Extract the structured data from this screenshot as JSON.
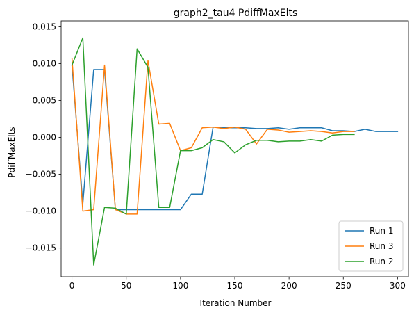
{
  "chart_data": {
    "type": "line",
    "title": "graph2_tau4 PdiffMaxElts",
    "xlabel": "Iteration Number",
    "ylabel": "PdiffMaxElts",
    "xlim": [
      -10,
      310
    ],
    "ylim": [
      -0.0189,
      0.0158
    ],
    "xticks": [
      0,
      50,
      100,
      150,
      200,
      250,
      300
    ],
    "xtick_labels": [
      "0",
      "50",
      "100",
      "150",
      "200",
      "250",
      "300"
    ],
    "yticks": [
      -0.015,
      -0.01,
      -0.005,
      0.0,
      0.005,
      0.01,
      0.015
    ],
    "ytick_labels": [
      "−0.015",
      "−0.010",
      "−0.005",
      "0.000",
      "0.005",
      "0.010",
      "0.015"
    ],
    "grid": false,
    "legend_position": "lower-right",
    "series": [
      {
        "name": "Run 1",
        "color": "#1f77b4",
        "x": [
          0,
          10,
          20,
          30,
          40,
          50,
          60,
          70,
          80,
          90,
          100,
          110,
          120,
          130,
          140,
          150,
          160,
          170,
          180,
          190,
          200,
          210,
          220,
          230,
          240,
          250,
          260,
          270,
          280,
          290,
          300
        ],
        "y": [
          0.0098,
          -0.009,
          0.0092,
          0.0092,
          -0.0098,
          -0.0098,
          -0.0098,
          -0.0098,
          -0.0098,
          -0.0098,
          -0.0098,
          -0.0077,
          -0.0077,
          0.0014,
          0.0013,
          0.0013,
          0.0013,
          0.0012,
          0.0012,
          0.0013,
          0.0011,
          0.0013,
          0.0013,
          0.0013,
          0.0009,
          0.0009,
          0.0008,
          0.0011,
          0.0008,
          0.0008,
          0.0008
        ]
      },
      {
        "name": "Run 3",
        "color": "#ff7f0e",
        "x": [
          0,
          10,
          20,
          30,
          40,
          50,
          60,
          70,
          80,
          90,
          100,
          110,
          120,
          130,
          140,
          150,
          160,
          170,
          180,
          190,
          200,
          210,
          220,
          230,
          240,
          250,
          260
        ],
        "y": [
          0.0107,
          -0.01,
          -0.0098,
          0.0098,
          -0.0098,
          -0.0104,
          -0.0104,
          0.0104,
          0.0018,
          0.0019,
          -0.0018,
          -0.0014,
          0.0013,
          0.0014,
          0.0012,
          0.0014,
          0.0011,
          -0.0009,
          0.0011,
          0.001,
          0.0007,
          0.0008,
          0.0009,
          0.0008,
          0.0006,
          0.0008,
          0.0008
        ]
      },
      {
        "name": "Run 2",
        "color": "#2ca02c",
        "x": [
          0,
          10,
          20,
          30,
          40,
          50,
          60,
          70,
          80,
          90,
          100,
          110,
          120,
          130,
          140,
          150,
          160,
          170,
          180,
          190,
          200,
          210,
          220,
          230,
          240,
          250,
          260
        ],
        "y": [
          0.0098,
          0.0135,
          -0.0173,
          -0.0095,
          -0.0096,
          -0.0104,
          0.012,
          0.0095,
          -0.0095,
          -0.0095,
          -0.0018,
          -0.0018,
          -0.0014,
          -0.0003,
          -0.0006,
          -0.0021,
          -0.001,
          -0.0004,
          -0.0004,
          -0.0006,
          -0.0005,
          -0.0005,
          -0.0003,
          -0.0005,
          0.0003,
          0.0004,
          0.0004
        ]
      }
    ]
  }
}
